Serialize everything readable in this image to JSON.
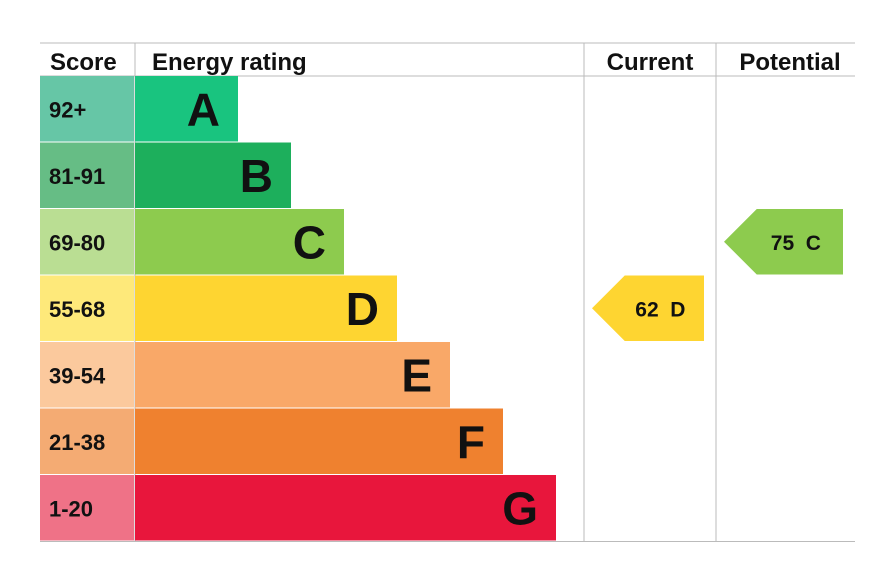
{
  "header": {
    "score_label": "Score",
    "rating_label": "Energy rating",
    "current_label": "Current",
    "potential_label": "Potential"
  },
  "chart_data": {
    "type": "bar",
    "categories": [
      "A",
      "B",
      "C",
      "D",
      "E",
      "F",
      "G"
    ],
    "bands": [
      {
        "score": "92+",
        "letter": "A",
        "color": "#19c47f",
        "score_color": "#66c6a6"
      },
      {
        "score": "81-91",
        "letter": "B",
        "color": "#1daf5c",
        "score_color": "#66bd85"
      },
      {
        "score": "69-80",
        "letter": "C",
        "color": "#8dcb4e",
        "score_color": "#bade93"
      },
      {
        "score": "55-68",
        "letter": "D",
        "color": "#fed531",
        "score_color": "#fee97a"
      },
      {
        "score": "39-54",
        "letter": "E",
        "color": "#f9a868",
        "score_color": "#fbc99d"
      },
      {
        "score": "21-38",
        "letter": "F",
        "color": "#ef812f",
        "score_color": "#f4ab73"
      },
      {
        "score": "1-20",
        "letter": "G",
        "color": "#e8163c",
        "score_color": "#ef7287"
      }
    ],
    "current": {
      "value": 62,
      "letter": "D",
      "label": "62  D",
      "color": "#fed531"
    },
    "potential": {
      "value": 75,
      "letter": "C",
      "label": "75  C",
      "color": "#8dcb4e"
    },
    "line_color": "#bbbbbb"
  }
}
